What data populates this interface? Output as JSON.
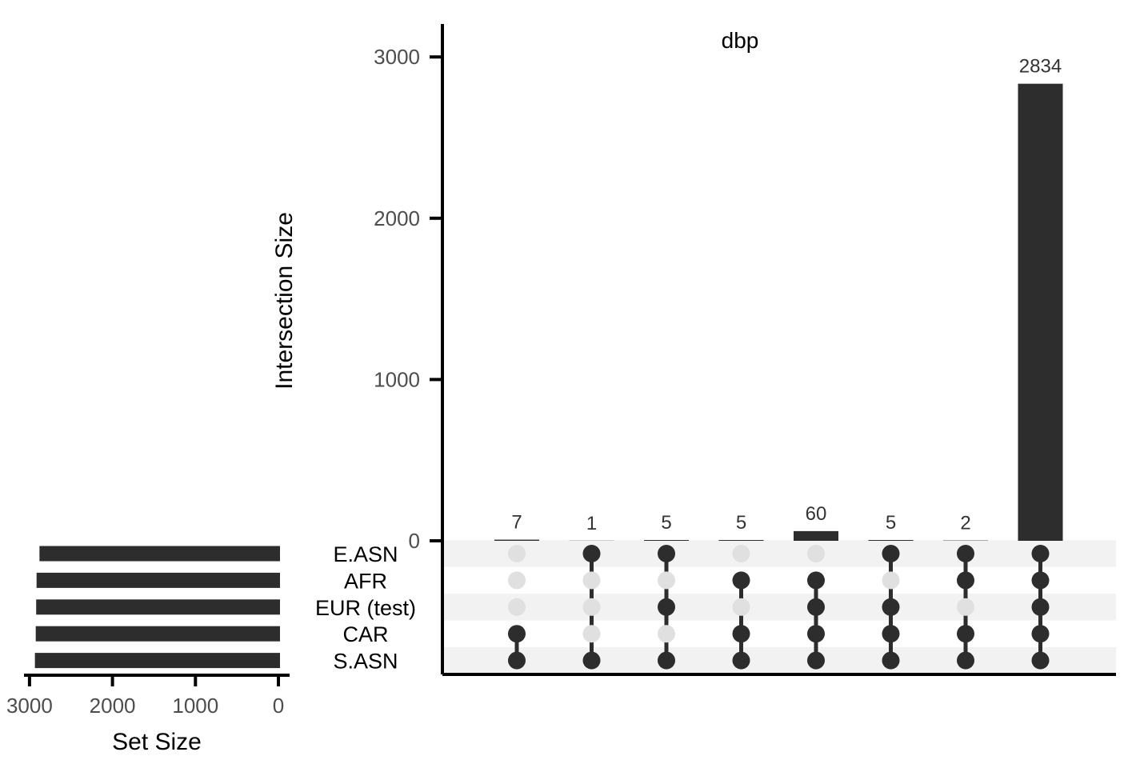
{
  "chart_data": {
    "type": "bar",
    "chart_kind": "upset",
    "title": "dbp",
    "ylabel": "Intersection Size",
    "ylim": [
      0,
      3250
    ],
    "y_ticks": [
      0,
      1000,
      2000,
      3000
    ],
    "set_size_label": "Set Size",
    "set_size_ticks": [
      3000,
      2000,
      1000,
      0
    ],
    "set_size_xlim": [
      3000,
      0
    ],
    "sets": [
      "E.ASN",
      "AFR",
      "EUR (test)",
      "CAR",
      "S.ASN"
    ],
    "set_sizes": [
      2880,
      2915,
      2920,
      2925,
      2935
    ],
    "intersections": [
      {
        "value": 7,
        "members": [
          "CAR",
          "S.ASN"
        ]
      },
      {
        "value": 1,
        "members": [
          "E.ASN",
          "S.ASN"
        ]
      },
      {
        "value": 5,
        "members": [
          "E.ASN",
          "EUR (test)",
          "S.ASN"
        ]
      },
      {
        "value": 5,
        "members": [
          "AFR",
          "CAR",
          "S.ASN"
        ]
      },
      {
        "value": 60,
        "members": [
          "AFR",
          "EUR (test)",
          "CAR",
          "S.ASN"
        ]
      },
      {
        "value": 5,
        "members": [
          "E.ASN",
          "EUR (test)",
          "CAR",
          "S.ASN"
        ]
      },
      {
        "value": 2,
        "members": [
          "E.ASN",
          "AFR",
          "CAR",
          "S.ASN"
        ]
      },
      {
        "value": 2834,
        "members": [
          "E.ASN",
          "AFR",
          "EUR (test)",
          "CAR",
          "S.ASN"
        ]
      }
    ],
    "colors": {
      "bar": "#2d2d2d",
      "dot_active": "#2d2d2d",
      "dot_inactive": "#e0e0e0",
      "row_stripe": "#f2f2f2",
      "axis": "#000000"
    }
  }
}
